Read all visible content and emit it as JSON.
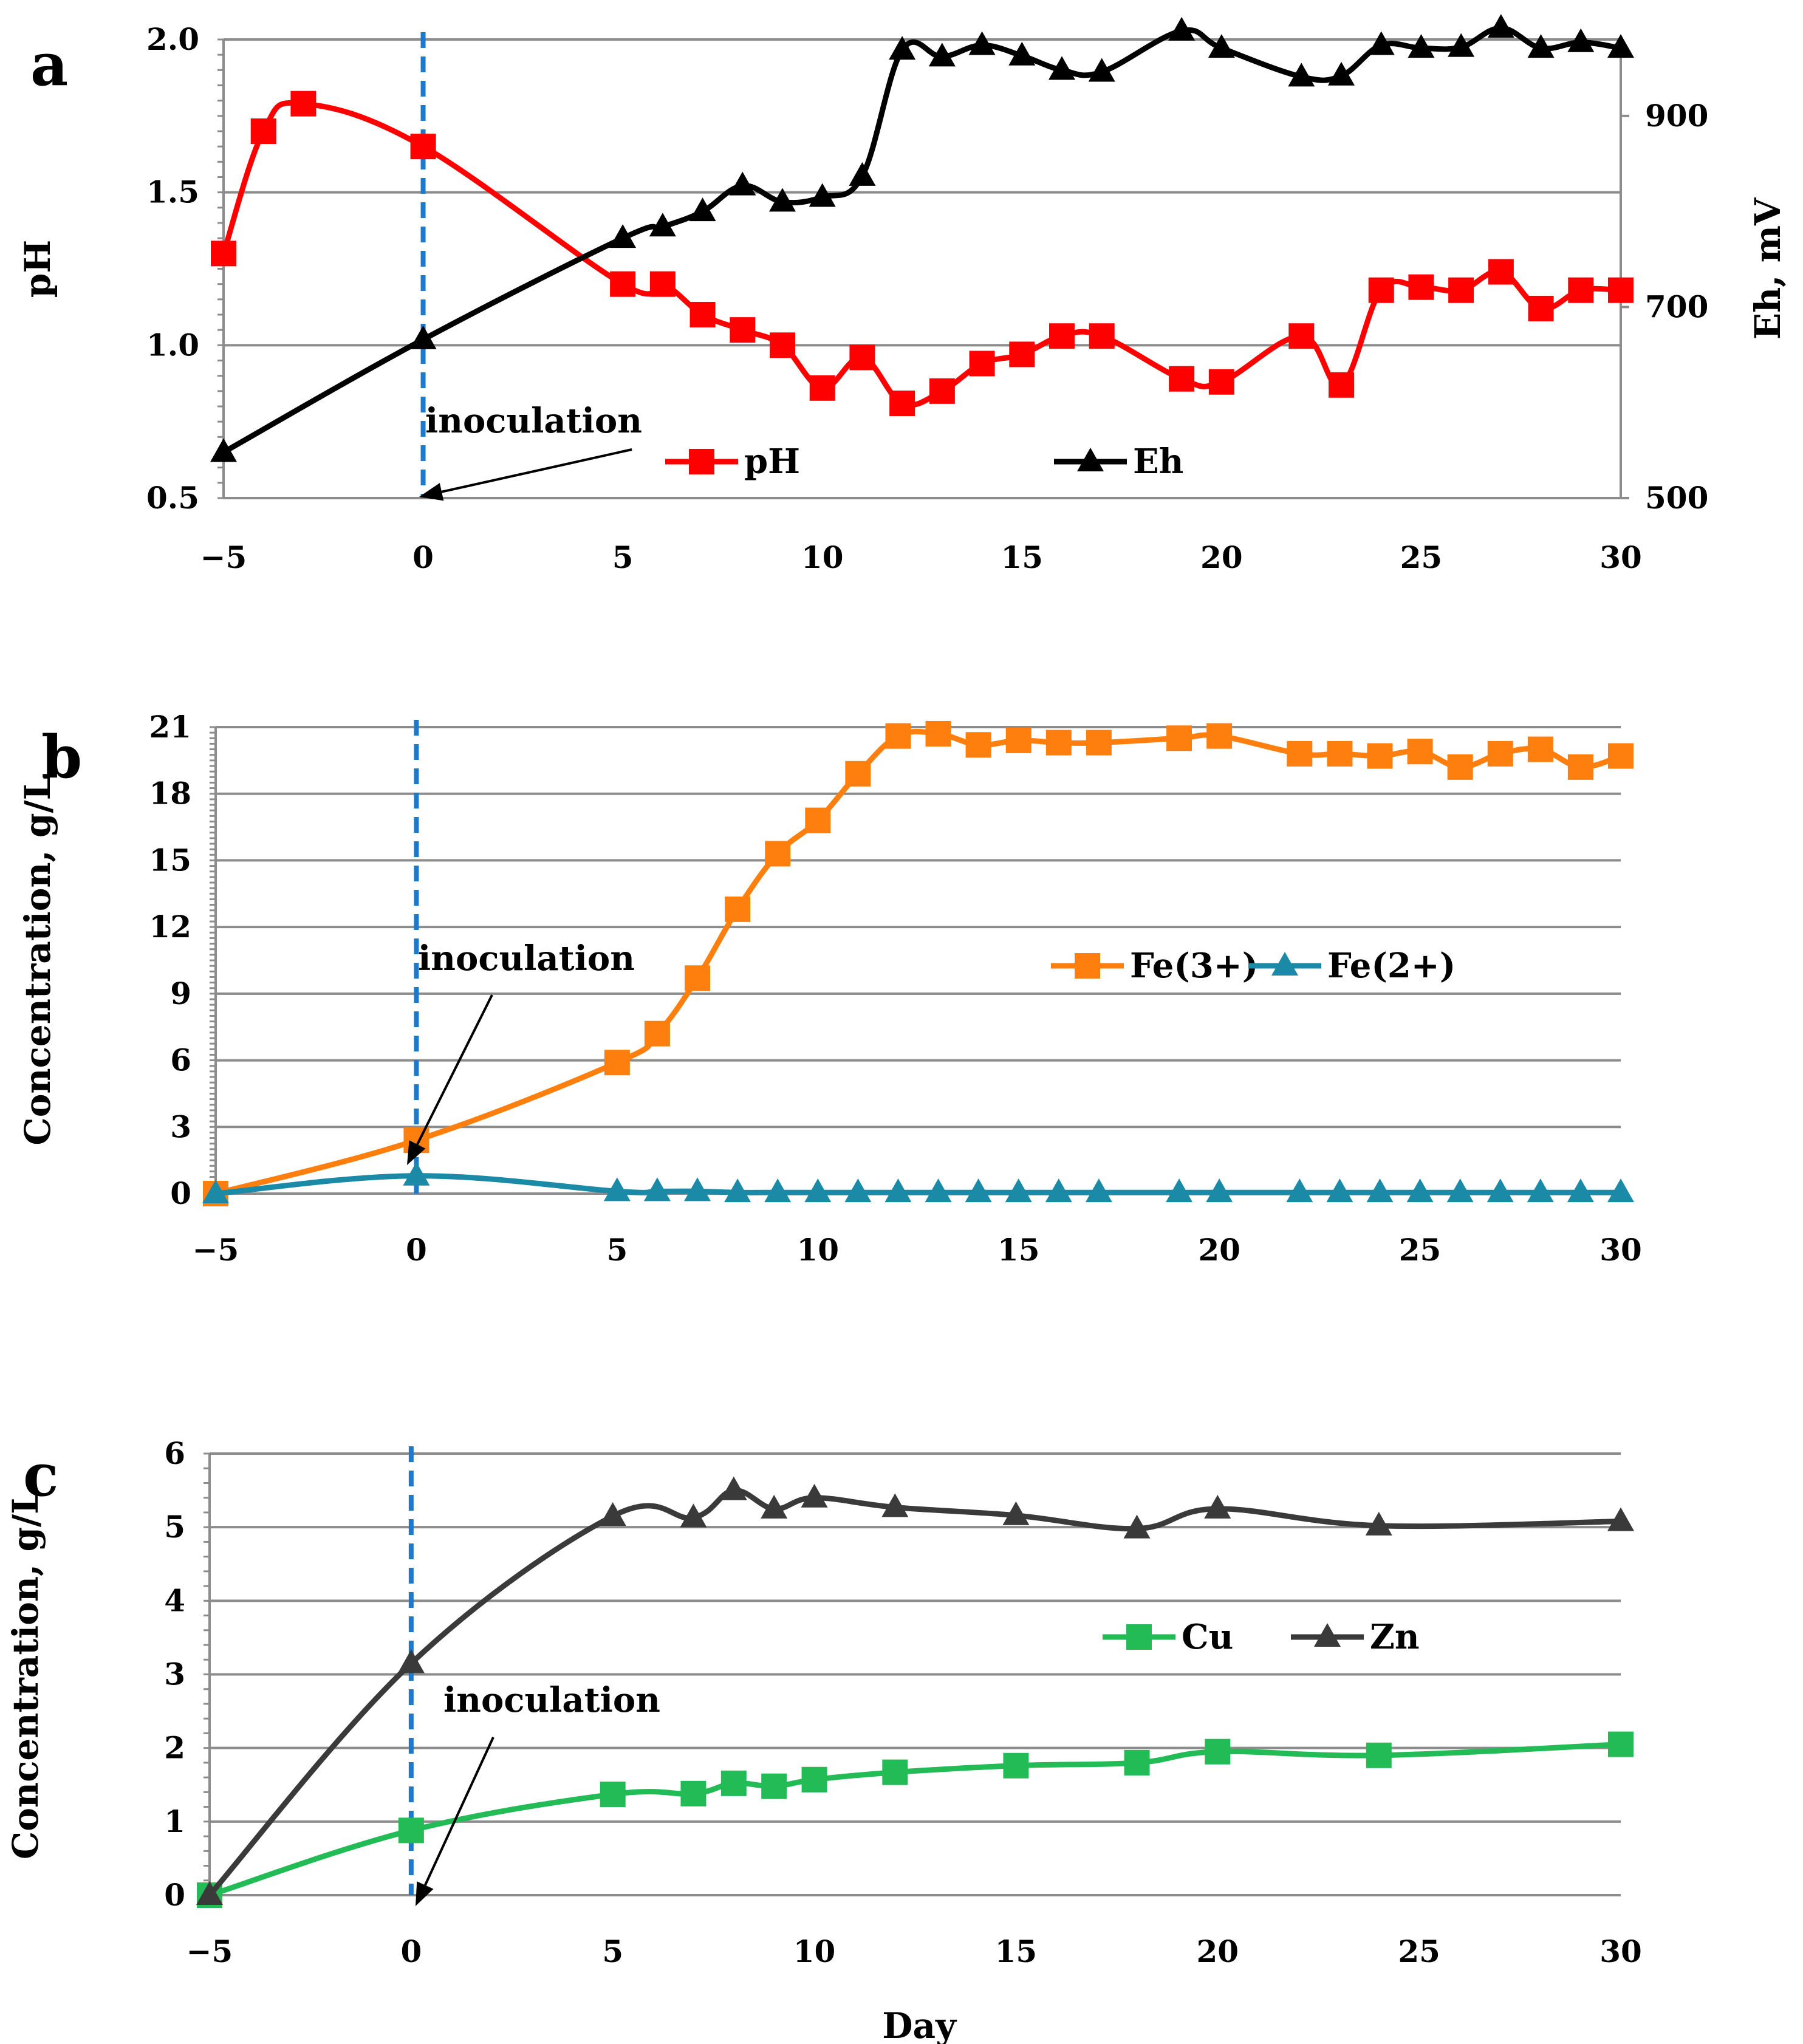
{
  "x_axis_label": "Day",
  "annotation_label": "inoculation",
  "colors": {
    "pH": "#ff0000",
    "Eh": "#000000",
    "Fe3": "#ff7f0e",
    "Fe2": "#1a8aa6",
    "Cu": "#22bb55",
    "Zn": "#3a3a3a",
    "inoculation_line": "#1f78c8",
    "grid": "#8c8c8c"
  },
  "chart_data": [
    {
      "panel": "a",
      "type": "line",
      "xlabel": "",
      "ylabel": "pH",
      "y2label": "Eh, mV",
      "xlim": [
        -5,
        30
      ],
      "ylim": [
        0.5,
        2.0
      ],
      "y2lim": [
        500,
        980
      ],
      "x_ticks": [
        "−5",
        "0",
        "5",
        "10",
        "15",
        "20",
        "25",
        "30"
      ],
      "y_ticks": [
        "0.5",
        "1.0",
        "1.5",
        "2.0"
      ],
      "y2_ticks": [
        "500",
        "700",
        "900"
      ],
      "inoculation_day": 0,
      "legend_position": "lower-center",
      "series": [
        {
          "name": "pH",
          "axis": "left",
          "marker": "square",
          "color_key": "pH",
          "x": [
            -5,
            -4,
            -3,
            0,
            5,
            6,
            7,
            8,
            9,
            10,
            11,
            12,
            13,
            14,
            15,
            16,
            17,
            19,
            20,
            22,
            23,
            24,
            25,
            26,
            27,
            28,
            29,
            30
          ],
          "values": [
            1.3,
            1.7,
            1.79,
            1.65,
            1.2,
            1.2,
            1.1,
            1.05,
            1.0,
            0.86,
            0.96,
            0.81,
            0.85,
            0.94,
            0.97,
            1.03,
            1.03,
            0.89,
            0.88,
            1.03,
            0.87,
            1.18,
            1.19,
            1.18,
            1.24,
            1.12,
            1.18,
            1.18
          ]
        },
        {
          "name": "Eh",
          "axis": "right",
          "marker": "triangle",
          "color_key": "Eh",
          "x": [
            -5,
            0,
            5,
            6,
            7,
            8,
            9,
            10,
            11,
            12,
            13,
            14,
            15,
            16,
            17,
            19,
            20,
            22,
            23,
            24,
            25,
            26,
            27,
            28,
            29,
            30
          ],
          "values": [
            548,
            666,
            772,
            784,
            800,
            827,
            810,
            815,
            837,
            969,
            962,
            974,
            963,
            948,
            946,
            989,
            971,
            941,
            942,
            974,
            971,
            972,
            992,
            971,
            977,
            971
          ]
        }
      ]
    },
    {
      "panel": "b",
      "type": "line",
      "xlabel": "",
      "ylabel": "Concentration, g/L",
      "xlim": [
        -5,
        30
      ],
      "ylim": [
        0,
        21
      ],
      "x_ticks": [
        "−5",
        "0",
        "5",
        "10",
        "15",
        "20",
        "25",
        "30"
      ],
      "y_ticks": [
        "0",
        "3",
        "6",
        "9",
        "12",
        "15",
        "18",
        "21"
      ],
      "inoculation_day": 0,
      "legend_position": "center-right",
      "series": [
        {
          "name": "Fe(3+)",
          "marker": "square",
          "color_key": "Fe3",
          "x": [
            -5,
            0,
            5,
            6,
            7,
            8,
            9,
            10,
            11,
            12,
            13,
            14,
            15,
            16,
            17,
            19,
            20,
            22,
            23,
            24,
            25,
            26,
            27,
            28,
            29,
            30
          ],
          "values": [
            0,
            2.4,
            5.9,
            7.2,
            9.7,
            12.8,
            15.3,
            16.8,
            18.9,
            20.6,
            20.7,
            20.2,
            20.4,
            20.3,
            20.3,
            20.5,
            20.6,
            19.8,
            19.8,
            19.7,
            19.9,
            19.2,
            19.8,
            20.0,
            19.2,
            19.7
          ]
        },
        {
          "name": "Fe(2+)",
          "marker": "triangle",
          "color_key": "Fe2",
          "x": [
            -5,
            0,
            5,
            6,
            7,
            8,
            9,
            10,
            11,
            12,
            13,
            14,
            15,
            16,
            17,
            19,
            20,
            22,
            23,
            24,
            25,
            26,
            27,
            28,
            29,
            30
          ],
          "values": [
            0,
            0.8,
            0.1,
            0.1,
            0.1,
            0.05,
            0.05,
            0.05,
            0.05,
            0.05,
            0.05,
            0.05,
            0.05,
            0.05,
            0.05,
            0.05,
            0.05,
            0.05,
            0.05,
            0.05,
            0.05,
            0.05,
            0.05,
            0.05,
            0.05,
            0.05
          ]
        }
      ]
    },
    {
      "panel": "c",
      "type": "line",
      "xlabel": "Day",
      "ylabel": "Concentration, g/L",
      "xlim": [
        -5,
        30
      ],
      "ylim": [
        0,
        6
      ],
      "x_ticks": [
        "−5",
        "0",
        "5",
        "10",
        "15",
        "20",
        "25",
        "30"
      ],
      "y_ticks": [
        "0",
        "1",
        "2",
        "3",
        "4",
        "5",
        "6"
      ],
      "inoculation_day": 0,
      "legend_position": "center-right",
      "series": [
        {
          "name": "Cu",
          "marker": "square",
          "color_key": "Cu",
          "x": [
            -5,
            0,
            5,
            7,
            8,
            9,
            10,
            12,
            15,
            18,
            20,
            24,
            30
          ],
          "values": [
            0,
            0.88,
            1.37,
            1.38,
            1.52,
            1.48,
            1.57,
            1.67,
            1.76,
            1.8,
            1.95,
            1.9,
            2.05
          ]
        },
        {
          "name": "Zn",
          "marker": "triangle",
          "color_key": "Zn",
          "x": [
            -5,
            0,
            5,
            7,
            8,
            9,
            10,
            12,
            15,
            18,
            20,
            24,
            30
          ],
          "values": [
            0,
            3.15,
            5.15,
            5.13,
            5.5,
            5.25,
            5.4,
            5.27,
            5.16,
            4.98,
            5.25,
            5.02,
            5.08
          ]
        }
      ]
    }
  ]
}
